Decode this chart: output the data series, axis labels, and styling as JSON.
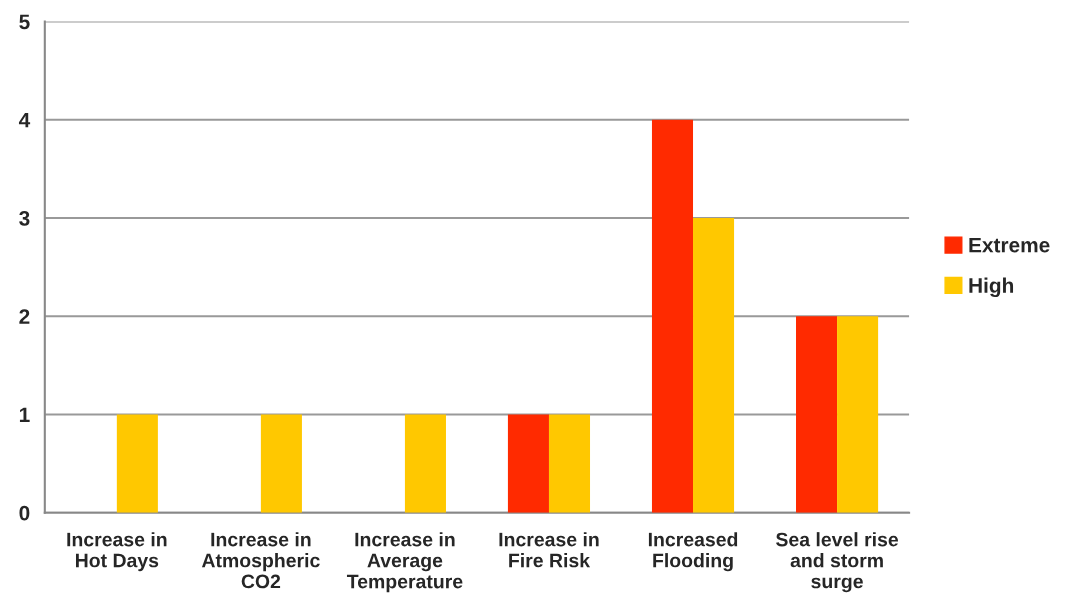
{
  "chart_data": {
    "type": "bar",
    "categories": [
      "Increase in\nHot Days",
      "Increase in\nAtmospheric\nCO2",
      "Increase in\nAverage\nTemperature",
      "Increase in\nFire Risk",
      "Increased\nFlooding",
      "Sea level rise\nand storm\nsurge"
    ],
    "series": [
      {
        "name": "Extreme",
        "color": "#ff2a00",
        "values": [
          0,
          0,
          0,
          1,
          4,
          2
        ]
      },
      {
        "name": "High",
        "color": "#ffc800",
        "values": [
          1,
          1,
          1,
          1,
          3,
          2
        ]
      }
    ],
    "ylim": [
      0,
      5
    ],
    "yticks": [
      0,
      1,
      2,
      3,
      4,
      5
    ],
    "grid": "y",
    "legend": "right"
  }
}
